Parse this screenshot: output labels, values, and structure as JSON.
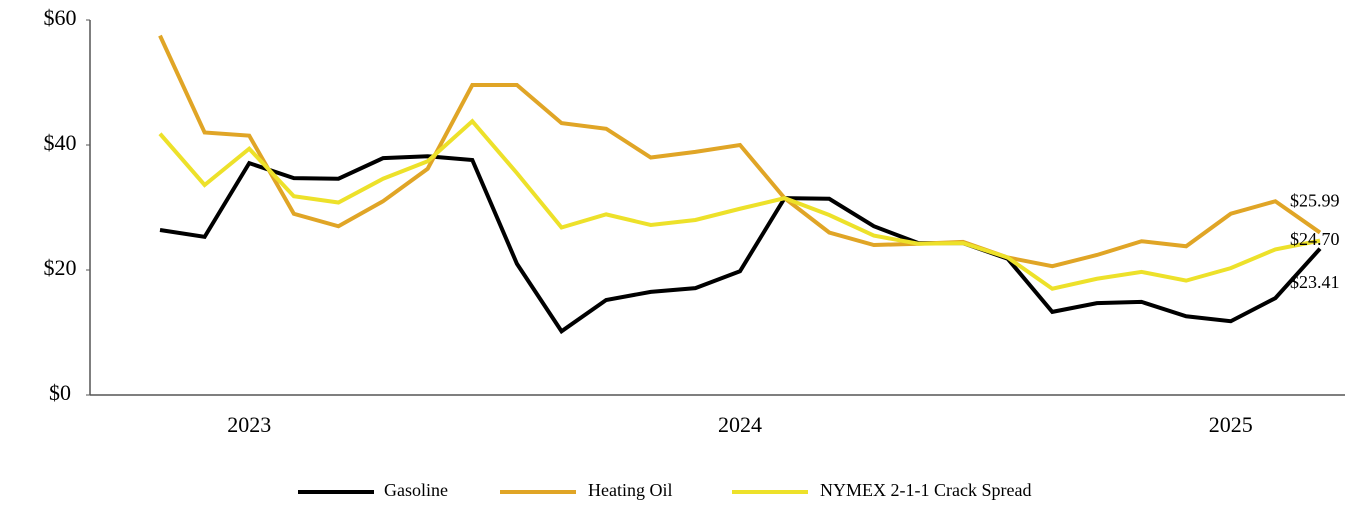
{
  "chart_data": {
    "type": "line",
    "categories": [
      null,
      null,
      "2023",
      null,
      null,
      null,
      null,
      null,
      null,
      null,
      null,
      null,
      null,
      "2024",
      null,
      null,
      null,
      null,
      null,
      null,
      null,
      null,
      null,
      null,
      "2025",
      null,
      null
    ],
    "series": [
      {
        "name": "Gasoline",
        "color": "#000000",
        "values": [
          26.4,
          25.3,
          37.1,
          34.7,
          34.6,
          37.9,
          38.2,
          37.6,
          21.0,
          10.2,
          15.2,
          16.5,
          17.1,
          19.8,
          31.5,
          31.4,
          27.0,
          24.3,
          24.3,
          21.8,
          13.3,
          14.7,
          14.9,
          12.6,
          11.8,
          15.5,
          23.41
        ],
        "value_labels": [
          null,
          null,
          null,
          null,
          null,
          null,
          null,
          null,
          null,
          null,
          null,
          null,
          null,
          null,
          null,
          null,
          null,
          null,
          null,
          null,
          null,
          null,
          null,
          null,
          null,
          null,
          "$23.41"
        ]
      },
      {
        "name": "Heating Oil",
        "color": "#e0a526",
        "values": [
          57.5,
          42.0,
          41.5,
          29.0,
          27.0,
          31.0,
          36.2,
          49.6,
          49.6,
          43.5,
          42.6,
          38.0,
          38.9,
          40.0,
          31.5,
          26.0,
          24.0,
          24.2,
          24.5,
          22.0,
          20.6,
          22.4,
          24.6,
          23.8,
          29.0,
          31.0,
          25.99
        ],
        "value_labels": [
          null,
          null,
          null,
          null,
          null,
          null,
          null,
          null,
          null,
          null,
          null,
          null,
          null,
          null,
          null,
          null,
          null,
          null,
          null,
          null,
          null,
          null,
          null,
          null,
          null,
          null,
          "$25.99"
        ]
      },
      {
        "name": "NYMEX 2-1-1 Crack Spread",
        "color": "#ede12a",
        "values": [
          41.8,
          33.6,
          39.4,
          31.8,
          30.8,
          34.6,
          37.4,
          43.8,
          35.5,
          26.8,
          28.9,
          27.2,
          28.0,
          29.8,
          31.5,
          28.8,
          25.5,
          24.2,
          24.3,
          22.0,
          17.0,
          18.6,
          19.7,
          18.3,
          20.3,
          23.3,
          24.7
        ],
        "value_labels": [
          null,
          null,
          null,
          null,
          null,
          null,
          null,
          null,
          null,
          null,
          null,
          null,
          null,
          null,
          null,
          null,
          null,
          null,
          null,
          null,
          null,
          null,
          null,
          null,
          null,
          null,
          "$24.70"
        ]
      }
    ],
    "ylim": [
      0,
      60
    ],
    "yticks": [
      {
        "value": 0,
        "label": "$0"
      },
      {
        "value": 20,
        "label": "$20"
      },
      {
        "value": 40,
        "label": "$40"
      },
      {
        "value": 60,
        "label": "$60"
      }
    ],
    "legend": "bottom",
    "grid": false
  }
}
